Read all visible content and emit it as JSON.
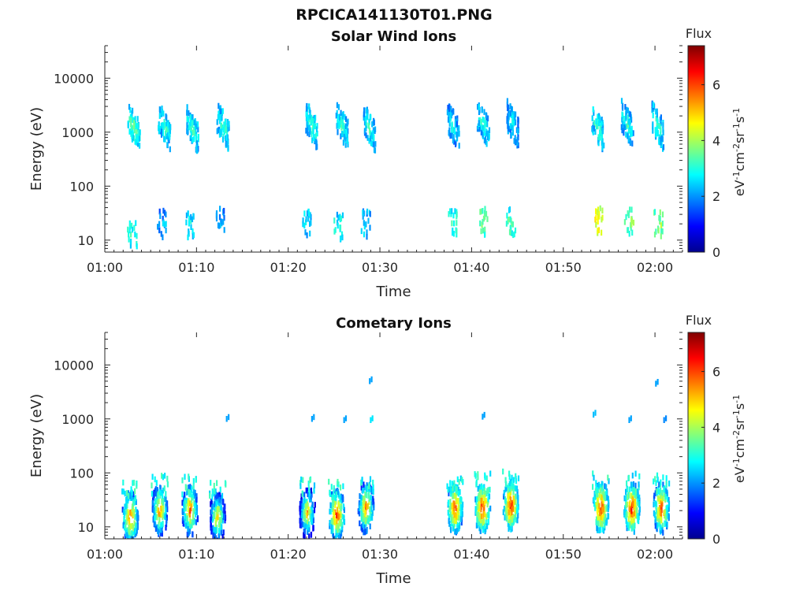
{
  "figure_title": "RPCICA141130T01.PNG",
  "chart_data": [
    {
      "type": "heatmap",
      "title": "Solar Wind Ions",
      "xlabel": "Time",
      "ylabel": "Energy (eV)",
      "x_ticks": [
        "01:00",
        "01:10",
        "01:20",
        "01:30",
        "01:40",
        "01:50",
        "02:00"
      ],
      "xlim_minutes": [
        0,
        63
      ],
      "y_scale": "log",
      "ylim": [
        6,
        40000
      ],
      "y_ticks": [
        10,
        100,
        1000,
        10000
      ],
      "y_tick_labels": [
        "10",
        "100",
        "1000",
        "10000"
      ],
      "colorbar": {
        "title": "Flux",
        "unit_label": "eV-1cm-2sr-1s-1",
        "range": [
          0,
          7.4
        ],
        "ticks": [
          0,
          2,
          4,
          6
        ],
        "colormap": [
          "#00008f",
          "#0000ff",
          "#007fff",
          "#00ffff",
          "#7fff7f",
          "#ffff00",
          "#ff7f00",
          "#ff0000",
          "#7f0000"
        ]
      },
      "bursts": [
        {
          "t": 3.2,
          "e": 1200,
          "v": 3.6
        },
        {
          "t": 6.5,
          "e": 1300,
          "v": 3.3
        },
        {
          "t": 9.6,
          "e": 1100,
          "v": 3.4
        },
        {
          "t": 12.9,
          "e": 1300,
          "v": 3.3
        },
        {
          "t": 22.6,
          "e": 1300,
          "v": 3.4
        },
        {
          "t": 25.9,
          "e": 1300,
          "v": 3.3
        },
        {
          "t": 28.9,
          "e": 1200,
          "v": 3.3
        },
        {
          "t": 38.0,
          "e": 1300,
          "v": 3.0
        },
        {
          "t": 41.3,
          "e": 1400,
          "v": 3.3
        },
        {
          "t": 44.5,
          "e": 1400,
          "v": 3.0
        },
        {
          "t": 53.8,
          "e": 1200,
          "v": 3.4
        },
        {
          "t": 57.0,
          "e": 1400,
          "v": 3.2
        },
        {
          "t": 60.3,
          "e": 1300,
          "v": 3.3
        }
      ],
      "low_energy_bursts": [
        {
          "t": 3.0,
          "e": 12,
          "v": 3.0
        },
        {
          "t": 6.2,
          "e": 20,
          "v": 2.0
        },
        {
          "t": 9.3,
          "e": 18,
          "v": 2.8
        },
        {
          "t": 12.6,
          "e": 22,
          "v": 2.2
        },
        {
          "t": 22.0,
          "e": 20,
          "v": 2.6
        },
        {
          "t": 25.5,
          "e": 18,
          "v": 2.8
        },
        {
          "t": 28.5,
          "e": 20,
          "v": 2.5
        },
        {
          "t": 37.9,
          "e": 20,
          "v": 3.2
        },
        {
          "t": 41.3,
          "e": 22,
          "v": 3.6
        },
        {
          "t": 44.3,
          "e": 22,
          "v": 3.3
        },
        {
          "t": 53.9,
          "e": 22,
          "v": 4.6
        },
        {
          "t": 57.2,
          "e": 22,
          "v": 3.6
        },
        {
          "t": 60.4,
          "e": 20,
          "v": 3.8
        }
      ]
    },
    {
      "type": "heatmap",
      "title": "Cometary Ions",
      "xlabel": "Time",
      "ylabel": "Energy (eV)",
      "x_ticks": [
        "01:00",
        "01:10",
        "01:20",
        "01:30",
        "01:40",
        "01:50",
        "02:00"
      ],
      "xlim_minutes": [
        0,
        63
      ],
      "y_scale": "log",
      "ylim": [
        6,
        40000
      ],
      "y_ticks": [
        10,
        100,
        1000,
        10000
      ],
      "y_tick_labels": [
        "10",
        "100",
        "1000",
        "10000"
      ],
      "colorbar": {
        "title": "Flux",
        "unit_label": "eV-1cm-2sr-1s-1",
        "range": [
          0,
          7.4
        ],
        "ticks": [
          0,
          2,
          4,
          6
        ],
        "colormap": [
          "#00008f",
          "#0000ff",
          "#007fff",
          "#00ffff",
          "#7fff7f",
          "#ffff00",
          "#ff7f00",
          "#ff0000",
          "#7f0000"
        ]
      },
      "bursts": [
        {
          "t": 2.8,
          "e": 15,
          "v": 6.2
        },
        {
          "t": 6.0,
          "e": 20,
          "v": 5.8
        },
        {
          "t": 9.3,
          "e": 20,
          "v": 5.9
        },
        {
          "t": 12.3,
          "e": 15,
          "v": 5.3
        },
        {
          "t": 22.1,
          "e": 18,
          "v": 5.3
        },
        {
          "t": 25.3,
          "e": 17,
          "v": 6.4
        },
        {
          "t": 28.5,
          "e": 22,
          "v": 5.9
        },
        {
          "t": 38.2,
          "e": 22,
          "v": 6.4
        },
        {
          "t": 41.2,
          "e": 22,
          "v": 6.6
        },
        {
          "t": 44.3,
          "e": 25,
          "v": 6.6
        },
        {
          "t": 54.1,
          "e": 22,
          "v": 6.6
        },
        {
          "t": 57.5,
          "e": 22,
          "v": 6.6
        },
        {
          "t": 60.7,
          "e": 22,
          "v": 6.4
        }
      ],
      "sparse_points": [
        {
          "t": 13.3,
          "e": 1000,
          "v": 2.0
        },
        {
          "t": 22.6,
          "e": 1000,
          "v": 2.0
        },
        {
          "t": 26.1,
          "e": 950,
          "v": 2.0
        },
        {
          "t": 28.9,
          "e": 5000,
          "v": 2.0
        },
        {
          "t": 29.0,
          "e": 950,
          "v": 2.5
        },
        {
          "t": 41.2,
          "e": 1100,
          "v": 2.0
        },
        {
          "t": 53.3,
          "e": 1200,
          "v": 2.2
        },
        {
          "t": 57.2,
          "e": 950,
          "v": 2.0
        },
        {
          "t": 60.1,
          "e": 4500,
          "v": 2.0
        },
        {
          "t": 61.0,
          "e": 950,
          "v": 1.8
        }
      ]
    }
  ]
}
